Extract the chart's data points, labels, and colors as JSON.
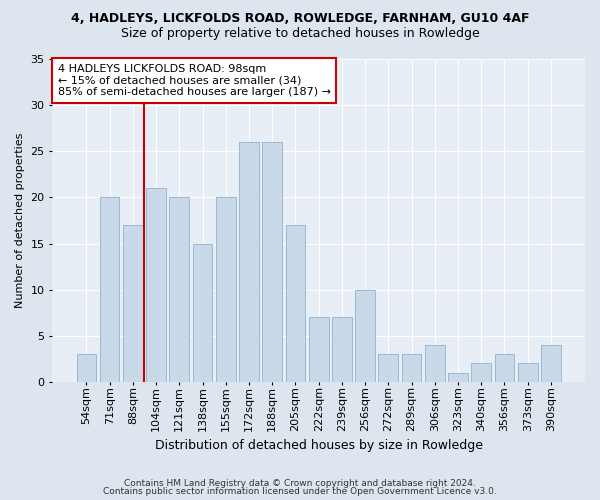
{
  "title1": "4, HADLEYS, LICKFOLDS ROAD, ROWLEDGE, FARNHAM, GU10 4AF",
  "title2": "Size of property relative to detached houses in Rowledge",
  "xlabel": "Distribution of detached houses by size in Rowledge",
  "ylabel": "Number of detached properties",
  "categories": [
    "54sqm",
    "71sqm",
    "88sqm",
    "104sqm",
    "121sqm",
    "138sqm",
    "155sqm",
    "172sqm",
    "188sqm",
    "205sqm",
    "222sqm",
    "239sqm",
    "256sqm",
    "272sqm",
    "289sqm",
    "306sqm",
    "323sqm",
    "340sqm",
    "356sqm",
    "373sqm",
    "390sqm"
  ],
  "values": [
    3,
    20,
    17,
    21,
    20,
    15,
    20,
    26,
    26,
    17,
    7,
    7,
    10,
    3,
    3,
    4,
    1,
    2,
    3,
    2,
    4
  ],
  "bar_color": "#c9d9ea",
  "bar_edge_color": "#9ab8d0",
  "vline_x_idx": 2.5,
  "vline_color": "#cc0000",
  "annotation_lines": [
    "4 HADLEYS LICKFOLDS ROAD: 98sqm",
    "← 15% of detached houses are smaller (34)",
    "85% of semi-detached houses are larger (187) →"
  ],
  "ylim": [
    0,
    35
  ],
  "yticks": [
    0,
    5,
    10,
    15,
    20,
    25,
    30,
    35
  ],
  "footer1": "Contains HM Land Registry data © Crown copyright and database right 2024.",
  "footer2": "Contains public sector information licensed under the Open Government Licence v3.0.",
  "bg_color": "#dde5ef",
  "plot_bg_color": "#e8eef5",
  "title1_fontsize": 9,
  "title2_fontsize": 9,
  "xlabel_fontsize": 9,
  "ylabel_fontsize": 8,
  "tick_fontsize": 8,
  "annot_fontsize": 8,
  "footer_fontsize": 6.5
}
